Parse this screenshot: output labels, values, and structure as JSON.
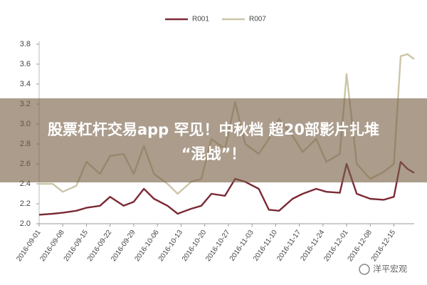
{
  "chart_data": {
    "type": "line",
    "x": [
      "2016-09-01",
      "2016-09-05",
      "2016-09-08",
      "2016-09-12",
      "2016-09-15",
      "2016-09-19",
      "2016-09-22",
      "2016-09-26",
      "2016-09-29",
      "2016-10-02",
      "2016-10-05",
      "2016-10-09",
      "2016-10-12",
      "2016-10-16",
      "2016-10-19",
      "2016-10-22",
      "2016-10-26",
      "2016-10-29",
      "2016-11-01",
      "2016-11-05",
      "2016-11-08",
      "2016-11-11",
      "2016-11-15",
      "2016-11-18",
      "2016-11-22",
      "2016-11-25",
      "2016-11-29",
      "2016-12-01",
      "2016-12-04",
      "2016-12-08",
      "2016-12-12",
      "2016-12-15",
      "2016-12-17",
      "2016-12-19",
      "2016-12-21"
    ],
    "series": [
      {
        "name": "R001",
        "color": "#7b2a36",
        "values": [
          2.09,
          2.1,
          2.11,
          2.13,
          2.16,
          2.18,
          2.27,
          2.18,
          2.22,
          2.35,
          2.25,
          2.18,
          2.1,
          2.15,
          2.18,
          2.3,
          2.28,
          2.45,
          2.42,
          2.35,
          2.14,
          2.13,
          2.25,
          2.3,
          2.35,
          2.32,
          2.31,
          2.6,
          2.3,
          2.25,
          2.24,
          2.27,
          2.62,
          2.55,
          2.51
        ]
      },
      {
        "name": "R007",
        "color": "#cdc5a8",
        "values": [
          2.4,
          2.4,
          2.32,
          2.38,
          2.62,
          2.5,
          2.68,
          2.7,
          2.5,
          2.78,
          2.5,
          2.4,
          2.3,
          2.42,
          2.45,
          2.85,
          2.75,
          3.22,
          2.8,
          2.7,
          2.85,
          3.05,
          2.88,
          2.72,
          2.85,
          2.62,
          2.7,
          3.5,
          2.6,
          2.45,
          2.52,
          2.6,
          3.68,
          3.7,
          3.65
        ]
      }
    ],
    "xlim": [
      "2016-09-01",
      "2016-12-21"
    ],
    "xticks": [
      "2016-09-01",
      "2016-09-08",
      "2016-09-15",
      "2016-09-22",
      "2016-09-29",
      "2016-10-06",
      "2016-10-13",
      "2016-10-20",
      "2016-10-27",
      "2016-11-03",
      "2016-11-10",
      "2016-11-17",
      "2016-11-24",
      "2016-12-01",
      "2016-12-08",
      "2016-12-15"
    ],
    "ylim": [
      2.0,
      3.8
    ],
    "yticks": [
      {
        "value": 2,
        "label": "2.0"
      },
      2.2,
      2.4,
      2.6,
      2.8,
      {
        "value": 3,
        "label": "3.0"
      },
      3.2,
      3.4,
      3.6,
      3.8
    ],
    "grid": false,
    "legend": "top"
  },
  "overlay": {
    "lines": [
      "股票杠杆交易app 罕见！中秋档 超20部影片扎堆",
      "“混战”！"
    ]
  },
  "watermark": "洋平宏观"
}
